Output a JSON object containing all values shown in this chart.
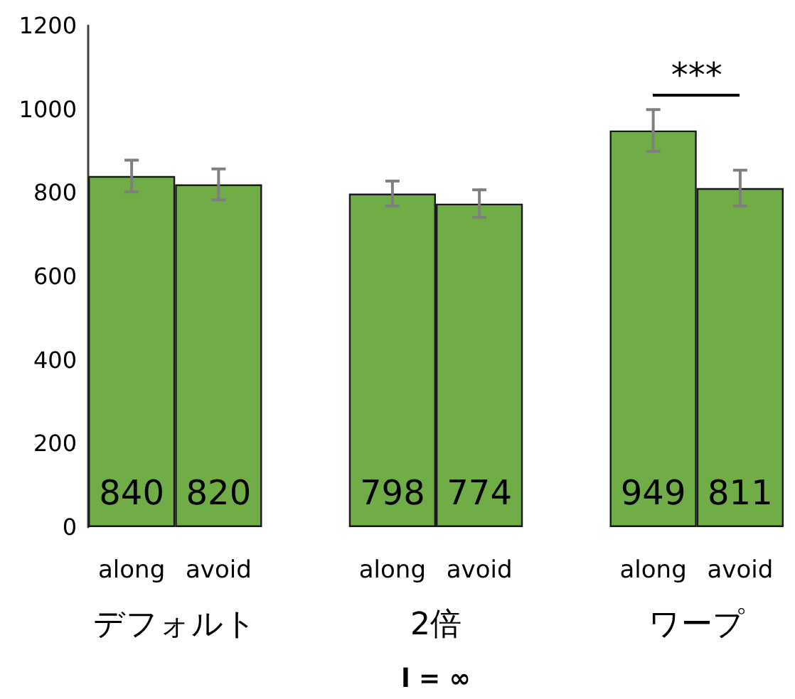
{
  "chart_data": {
    "type": "bar",
    "xlabel": "l = ∞",
    "categories": [
      "along",
      "avoid",
      null,
      "along",
      "avoid",
      null,
      "along",
      "avoid"
    ],
    "values": [
      840,
      820,
      null,
      798,
      774,
      null,
      949,
      811
    ],
    "errors": [
      38,
      37,
      null,
      30,
      33,
      null,
      50,
      43
    ],
    "color": "#70ad47",
    "ylim": [
      0,
      1200
    ],
    "yticks": [
      0,
      200,
      400,
      600,
      800,
      1000,
      1200
    ],
    "grid": false,
    "data_labels": true,
    "annotations": [
      "デフォルト",
      "2倍",
      "ワープ",
      "***"
    ]
  }
}
